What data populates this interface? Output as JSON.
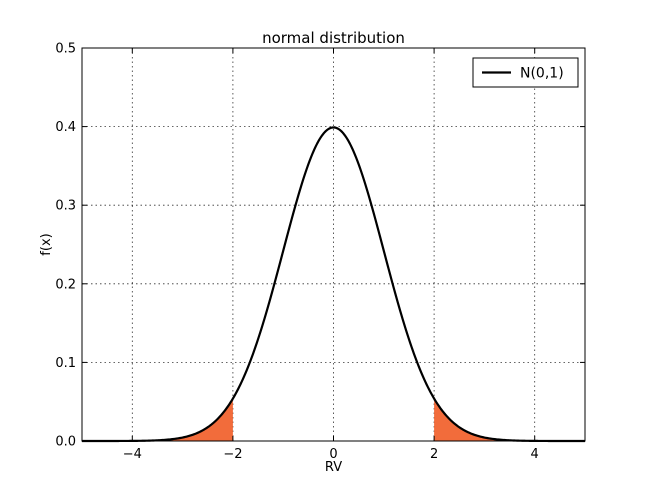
{
  "chart_data": {
    "type": "line",
    "title": "normal distribution",
    "xlabel": "RV",
    "ylabel": "f(x)",
    "xlim": [
      -5,
      5
    ],
    "ylim": [
      0,
      0.5
    ],
    "xticks": [
      -4,
      -2,
      0,
      2,
      4
    ],
    "xtick_labels": [
      "−4",
      "−2",
      "0",
      "2",
      "4"
    ],
    "yticks": [
      0.0,
      0.1,
      0.2,
      0.3,
      0.4,
      0.5
    ],
    "ytick_labels": [
      "0.0",
      "0.1",
      "0.2",
      "0.3",
      "0.4",
      "0.5"
    ],
    "grid": true,
    "legend_position": "top-right",
    "series": [
      {
        "name": "N(0,1)",
        "color": "#000000",
        "function": "standard normal pdf",
        "mean": 0,
        "std": 1,
        "x": [
          -5,
          -4,
          -3,
          -2.5,
          -2,
          -1.5,
          -1,
          -0.5,
          0,
          0.5,
          1,
          1.5,
          2,
          2.5,
          3,
          4,
          5
        ],
        "y": [
          0.0,
          0.0001,
          0.0044,
          0.0175,
          0.054,
          0.1295,
          0.242,
          0.3521,
          0.3989,
          0.3521,
          0.242,
          0.1295,
          0.054,
          0.0175,
          0.0044,
          0.0001,
          0.0
        ]
      }
    ],
    "shaded_regions": [
      {
        "x_from": -5,
        "x_to": -2,
        "color": "#f26c3b"
      },
      {
        "x_from": 2,
        "x_to": 5,
        "color": "#f26c3b"
      }
    ]
  }
}
